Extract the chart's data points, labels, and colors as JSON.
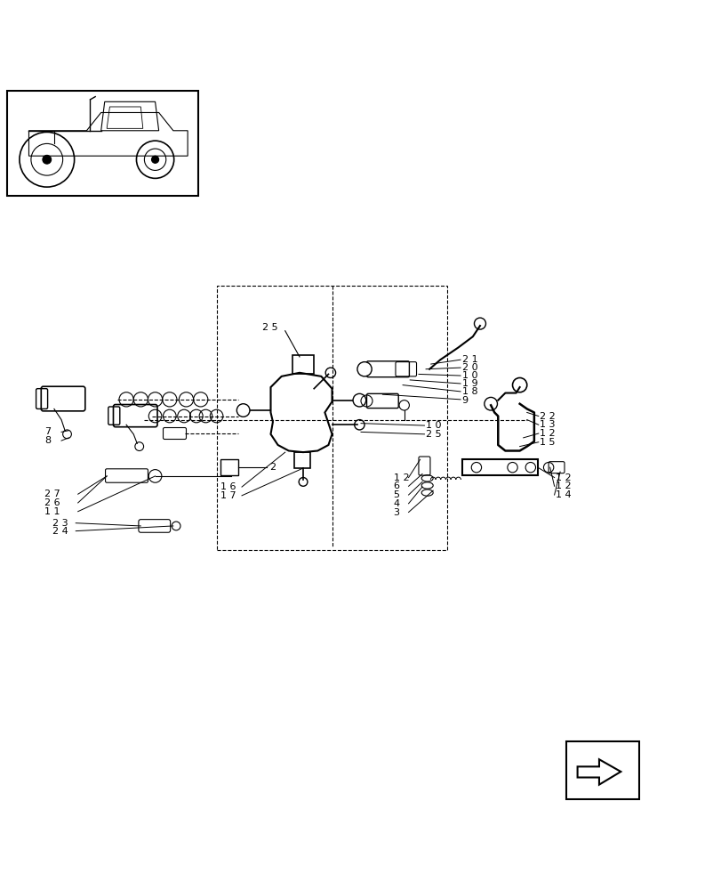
{
  "bg_color": "#ffffff",
  "line_color": "#000000",
  "fig_width": 8.12,
  "fig_height": 10.0
}
